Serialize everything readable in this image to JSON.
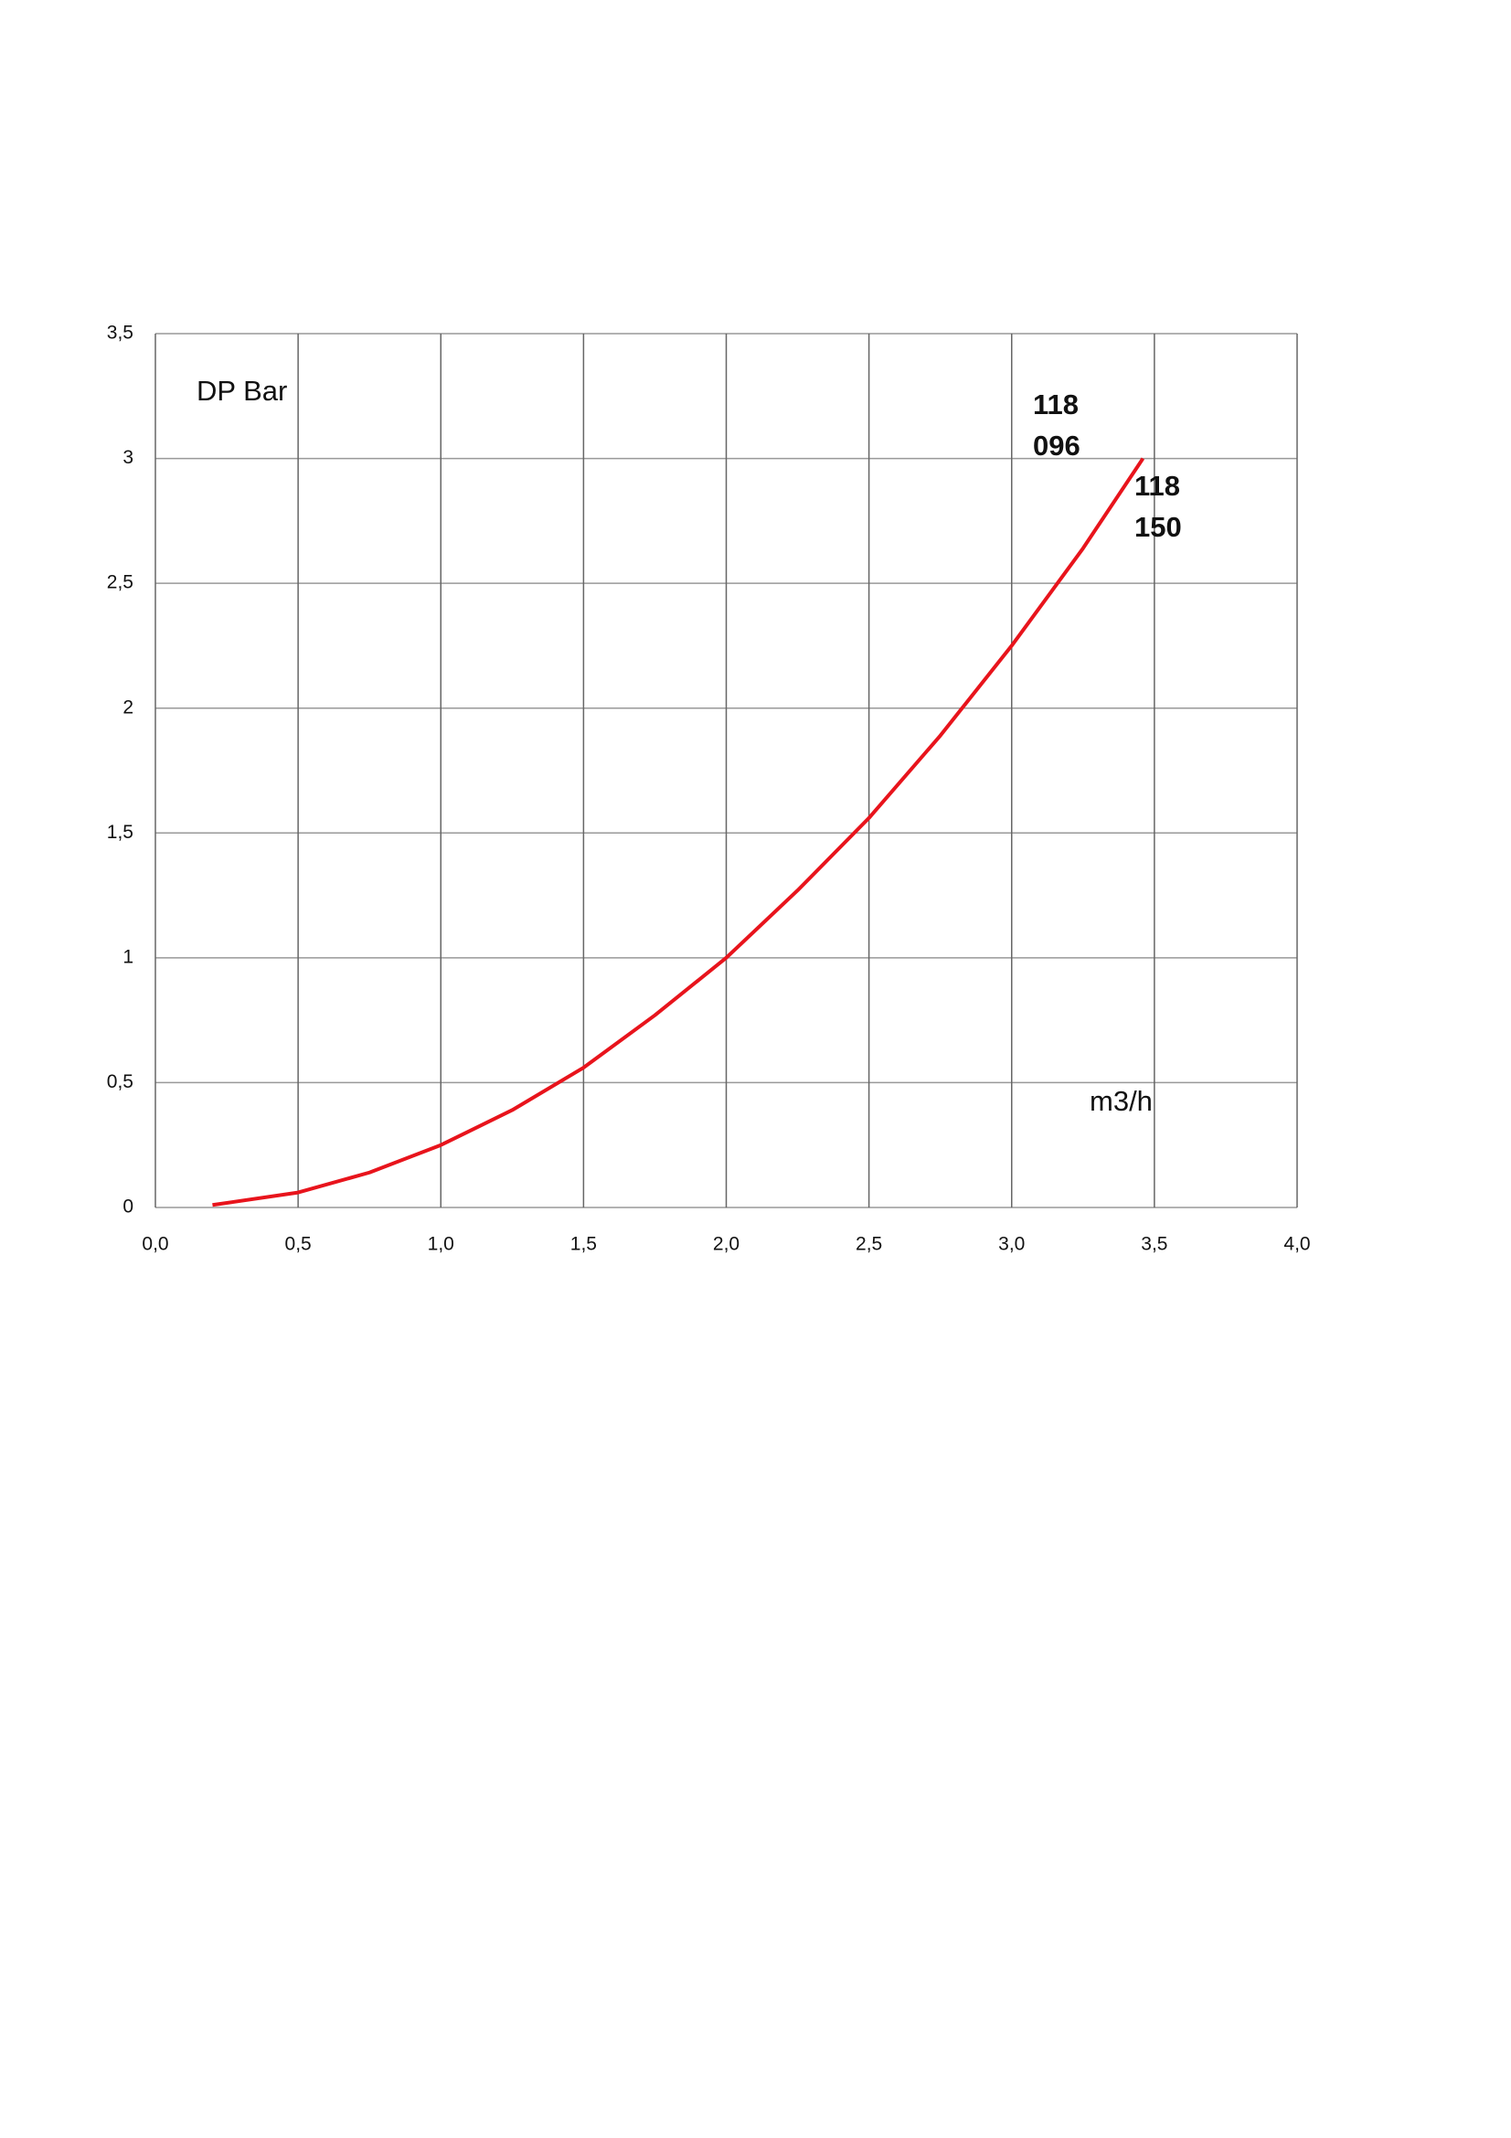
{
  "chart_data": {
    "type": "line",
    "x": [
      0.2,
      0.5,
      0.75,
      1.0,
      1.25,
      1.5,
      1.75,
      2.0,
      2.25,
      2.5,
      2.75,
      3.0,
      3.25,
      3.46
    ],
    "series": [
      {
        "color": "#e8141c",
        "values": [
          0.01,
          0.06,
          0.14,
          0.25,
          0.39,
          0.56,
          0.77,
          1.0,
          1.27,
          1.56,
          1.89,
          2.25,
          2.64,
          3.0
        ]
      }
    ],
    "xlim": [
      0,
      4
    ],
    "ylim": [
      0,
      3.5
    ],
    "xticks": [
      {
        "value": 0,
        "label": "0,0"
      },
      {
        "value": 0.5,
        "label": "0,5"
      },
      {
        "value": 1,
        "label": "1,0"
      },
      {
        "value": 1.5,
        "label": "1,5"
      },
      {
        "value": 2,
        "label": "2,0"
      },
      {
        "value": 2.5,
        "label": "2,5"
      },
      {
        "value": 3,
        "label": "3,0"
      },
      {
        "value": 3.5,
        "label": "3,5"
      },
      {
        "value": 4,
        "label": "4,0"
      }
    ],
    "yticks": [
      0,
      {
        "value": 0.5,
        "label": "0,5"
      },
      1,
      {
        "value": 1.5,
        "label": "1,5"
      },
      2,
      {
        "value": 2.5,
        "label": "2,5"
      },
      3,
      {
        "value": 3.5,
        "label": "3,5"
      }
    ],
    "grid": true,
    "annotations": [
      {
        "lines": [
          "DP Bar"
        ]
      },
      {
        "lines": [
          "118",
          "096"
        ],
        "bold": true
      },
      {
        "lines": [
          "118",
          "150"
        ],
        "bold": true
      },
      {
        "lines": [
          "m3/h"
        ]
      }
    ]
  }
}
